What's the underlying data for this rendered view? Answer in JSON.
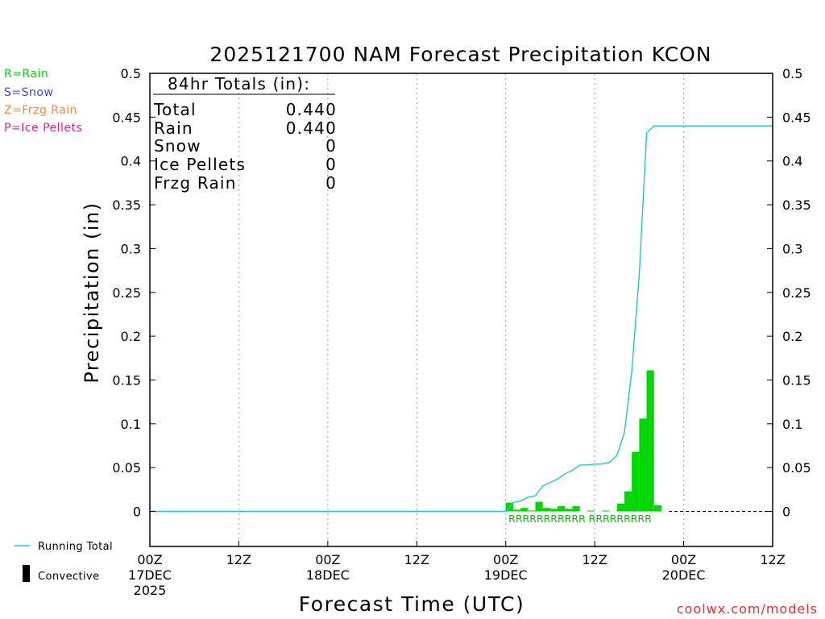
{
  "chart_data": {
    "type": "bar",
    "title": "2025121700 NAM Forecast Precipitation KCON",
    "xlabel": "Forecast Time (UTC)",
    "ylabel": "Precipitation (in)",
    "ylim": [
      -0.04,
      0.5
    ],
    "yticks": [
      0,
      0.05,
      0.1,
      0.15,
      0.2,
      0.25,
      0.3,
      0.35,
      0.4,
      0.45,
      0.5
    ],
    "ytick_labels": [
      "0",
      "0.05",
      "0.1",
      "0.15",
      "0.2",
      "0.25",
      "0.3",
      "0.35",
      "0.4",
      "0.45",
      "0.5"
    ],
    "x_range_hours": [
      0,
      84
    ],
    "xticks": [
      {
        "hour": 0,
        "lines": [
          "00Z",
          "17DEC",
          "2025"
        ]
      },
      {
        "hour": 12,
        "lines": [
          "12Z"
        ]
      },
      {
        "hour": 24,
        "lines": [
          "00Z",
          "18DEC"
        ]
      },
      {
        "hour": 36,
        "lines": [
          "12Z"
        ]
      },
      {
        "hour": 48,
        "lines": [
          "00Z",
          "19DEC"
        ]
      },
      {
        "hour": 60,
        "lines": [
          "12Z"
        ]
      },
      {
        "hour": 72,
        "lines": [
          "00Z",
          "20DEC"
        ]
      },
      {
        "hour": 84,
        "lines": [
          "12Z"
        ]
      }
    ],
    "grid": "vertical dotted at 12-hour ticks",
    "bar_interval_hours": 1,
    "series": [
      {
        "name": "Rain",
        "color": "#00d800",
        "hours": [
          49,
          50,
          51,
          52,
          53,
          54,
          55,
          56,
          57,
          58,
          59,
          60,
          61,
          62,
          63,
          64,
          65,
          66,
          67,
          68,
          69,
          70
        ],
        "values": [
          0.01,
          0.002,
          0.004,
          0.001,
          0.011,
          0.004,
          0.003,
          0.006,
          0.003,
          0.006,
          0.0,
          0.001,
          0.0,
          0.001,
          0.0,
          0.009,
          0.023,
          0.068,
          0.106,
          0.161,
          0.007,
          0.0
        ]
      },
      {
        "name": "Running Total",
        "color": "#1ec8c8",
        "points": [
          [
            0,
            0
          ],
          [
            47,
            0
          ],
          [
            48,
            0.0
          ],
          [
            49,
            0.01
          ],
          [
            50,
            0.012
          ],
          [
            51,
            0.016
          ],
          [
            52,
            0.018
          ],
          [
            53,
            0.029
          ],
          [
            54,
            0.033
          ],
          [
            55,
            0.037
          ],
          [
            56,
            0.043
          ],
          [
            57,
            0.047
          ],
          [
            58,
            0.053
          ],
          [
            59,
            0.053
          ],
          [
            60,
            0.054
          ],
          [
            61,
            0.054
          ],
          [
            62,
            0.056
          ],
          [
            63,
            0.064
          ],
          [
            64,
            0.09
          ],
          [
            65,
            0.16
          ],
          [
            66,
            0.27
          ],
          [
            67,
            0.432
          ],
          [
            68,
            0.44
          ],
          [
            69,
            0.44
          ],
          [
            84,
            0.44
          ]
        ]
      }
    ],
    "zero_line": "dashed black after precipitation ends",
    "precip_type_codes": {
      "text": "RRRRRRRRRRR RRRRRRRRR",
      "color": "#00c000"
    },
    "totals_box": {
      "title": "84hr Totals (in):",
      "rows": [
        {
          "label": "Total",
          "value": "0.440"
        },
        {
          "label": "Rain",
          "value": "0.440"
        },
        {
          "label": "Snow",
          "value": "0"
        },
        {
          "label": "Ice Pellets",
          "value": "0"
        },
        {
          "label": "Frzg Rain",
          "value": "0"
        }
      ]
    },
    "type_legend": [
      {
        "text": "R=Rain",
        "color": "#00d800"
      },
      {
        "text": "S=Snow",
        "color": "#3a48e0"
      },
      {
        "text": "Z=Frzg Rain",
        "color": "#f08a40"
      },
      {
        "text": "P=Ice Pellets",
        "color": "#e0208c"
      }
    ],
    "bottom_legend": [
      {
        "text": "Running Total",
        "kind": "line",
        "color": "#1ec8c8"
      },
      {
        "text": "Convective",
        "kind": "bar",
        "color": "#000000"
      }
    ],
    "credit": {
      "text": "coolwx.com/models",
      "color": "#e03030"
    }
  }
}
